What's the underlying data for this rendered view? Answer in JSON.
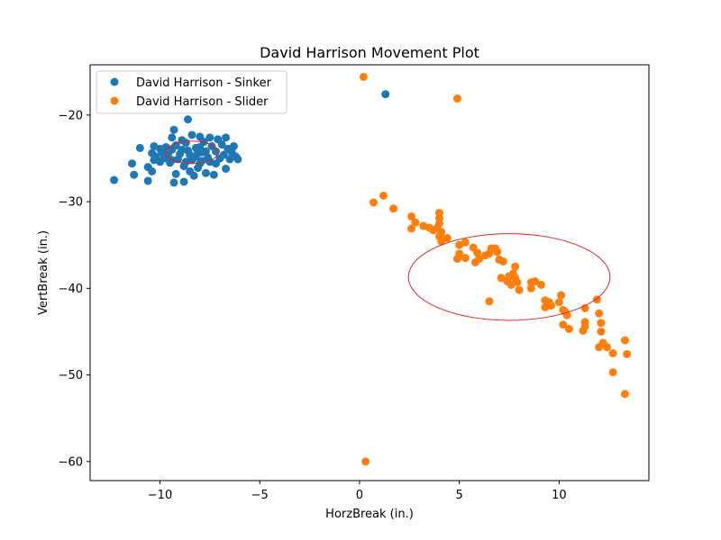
{
  "chart_data": {
    "type": "scatter",
    "title": "David Harrison Movement Plot",
    "xlabel": "HorzBreak (in.)",
    "ylabel": "VertBreak (in.)",
    "xlim": [
      -13.5,
      14.5
    ],
    "ylim": [
      -62.2,
      -14.2
    ],
    "xticks": [
      -10,
      -5,
      0,
      5,
      10
    ],
    "yticks": [
      -20,
      -30,
      -40,
      -50,
      -60
    ],
    "xtick_labels": [
      "−10",
      "−5",
      "0",
      "5",
      "10"
    ],
    "ytick_labels": [
      "−20",
      "−30",
      "−40",
      "−50",
      "−60"
    ],
    "grid": false,
    "legend_position": "upper-left",
    "series": [
      {
        "name": "David Harrison - Sinker",
        "color": "#1f77b4",
        "points": [
          [
            -12.3,
            -27.5
          ],
          [
            -11.4,
            -25.6
          ],
          [
            -11.3,
            -26.9
          ],
          [
            -11.0,
            -23.8
          ],
          [
            -10.6,
            -27.6
          ],
          [
            -10.6,
            -26.0
          ],
          [
            -10.4,
            -26.5
          ],
          [
            -10.4,
            -24.4
          ],
          [
            -10.3,
            -23.6
          ],
          [
            -10.3,
            -25.2
          ],
          [
            -10.2,
            -24.8
          ],
          [
            -10.0,
            -25.4
          ],
          [
            -10.0,
            -23.9
          ],
          [
            -9.9,
            -24.3
          ],
          [
            -9.8,
            -25.0
          ],
          [
            -9.7,
            -23.7
          ],
          [
            -9.6,
            -24.6
          ],
          [
            -9.5,
            -25.5
          ],
          [
            -9.4,
            -22.6
          ],
          [
            -9.4,
            -24.0
          ],
          [
            -9.3,
            -21.7
          ],
          [
            -9.3,
            -27.8
          ],
          [
            -9.2,
            -26.8
          ],
          [
            -9.2,
            -23.5
          ],
          [
            -9.1,
            -25.1
          ],
          [
            -9.0,
            -24.5
          ],
          [
            -8.9,
            -22.9
          ],
          [
            -8.8,
            -27.7
          ],
          [
            -8.8,
            -25.9
          ],
          [
            -8.7,
            -23.2
          ],
          [
            -8.6,
            -20.5
          ],
          [
            -8.6,
            -24.1
          ],
          [
            -8.5,
            -26.5
          ],
          [
            -8.4,
            -25.2
          ],
          [
            -8.4,
            -22.3
          ],
          [
            -8.3,
            -27.0
          ],
          [
            -8.2,
            -24.8
          ],
          [
            -8.2,
            -23.8
          ],
          [
            -8.1,
            -26.1
          ],
          [
            -8.0,
            -22.5
          ],
          [
            -8.0,
            -25.6
          ],
          [
            -7.9,
            -24.3
          ],
          [
            -7.8,
            -23.1
          ],
          [
            -7.7,
            -26.7
          ],
          [
            -7.6,
            -24.9
          ],
          [
            -7.5,
            -22.6
          ],
          [
            -7.5,
            -25.4
          ],
          [
            -7.4,
            -23.6
          ],
          [
            -7.3,
            -26.9
          ],
          [
            -7.2,
            -24.2
          ],
          [
            -7.1,
            -22.8
          ],
          [
            -7.0,
            -25.0
          ],
          [
            -6.9,
            -23.4
          ],
          [
            -6.8,
            -24.6
          ],
          [
            -6.7,
            -22.6
          ],
          [
            -6.7,
            -26.2
          ],
          [
            -6.6,
            -23.9
          ],
          [
            -6.5,
            -25.1
          ],
          [
            -6.4,
            -24.3
          ],
          [
            -6.3,
            -23.6
          ],
          [
            -6.2,
            -24.8
          ],
          [
            -6.1,
            -25.1
          ],
          [
            -8.5,
            -24.6
          ],
          [
            -8.3,
            -24.9
          ],
          [
            -8.1,
            -24.4
          ],
          [
            -7.9,
            -25.3
          ],
          [
            -8.7,
            -25.4
          ],
          [
            -8.0,
            -23.7
          ],
          [
            -7.7,
            -24.2
          ],
          [
            -8.9,
            -24.0
          ],
          [
            -9.4,
            -25.2
          ],
          [
            -7.2,
            -25.6
          ],
          [
            1.3,
            -17.6
          ]
        ]
      },
      {
        "name": "David Harrison - Slider",
        "color": "#ff7f0e",
        "points": [
          [
            0.2,
            -15.6
          ],
          [
            4.9,
            -18.1
          ],
          [
            0.3,
            -60.0
          ],
          [
            1.2,
            -29.3
          ],
          [
            0.7,
            -30.1
          ],
          [
            1.7,
            -30.8
          ],
          [
            2.6,
            -31.7
          ],
          [
            2.8,
            -32.4
          ],
          [
            2.6,
            -33.1
          ],
          [
            3.2,
            -32.8
          ],
          [
            3.5,
            -33.0
          ],
          [
            3.7,
            -33.3
          ],
          [
            4.0,
            -31.3
          ],
          [
            4.0,
            -31.9
          ],
          [
            4.0,
            -32.5
          ],
          [
            3.9,
            -33.0
          ],
          [
            4.1,
            -33.5
          ],
          [
            4.0,
            -34.0
          ],
          [
            4.2,
            -34.3
          ],
          [
            4.4,
            -34.2
          ],
          [
            4.1,
            -34.6
          ],
          [
            5.0,
            -35.0
          ],
          [
            5.3,
            -34.7
          ],
          [
            5.7,
            -35.3
          ],
          [
            5.0,
            -36.0
          ],
          [
            5.3,
            -36.5
          ],
          [
            4.9,
            -36.6
          ],
          [
            5.9,
            -35.9
          ],
          [
            6.0,
            -36.6
          ],
          [
            5.8,
            -37.0
          ],
          [
            6.3,
            -36.2
          ],
          [
            6.5,
            -36.0
          ],
          [
            6.6,
            -35.4
          ],
          [
            6.8,
            -35.4
          ],
          [
            6.9,
            -35.8
          ],
          [
            7.0,
            -36.7
          ],
          [
            7.2,
            -36.9
          ],
          [
            7.1,
            -38.8
          ],
          [
            7.4,
            -39.2
          ],
          [
            7.5,
            -38.6
          ],
          [
            7.6,
            -39.6
          ],
          [
            7.7,
            -38.3
          ],
          [
            7.8,
            -37.5
          ],
          [
            7.8,
            -38.8
          ],
          [
            8.0,
            -40.2
          ],
          [
            7.9,
            -39.3
          ],
          [
            8.6,
            -39.3
          ],
          [
            8.8,
            -39.2
          ],
          [
            8.6,
            -40.0
          ],
          [
            9.1,
            -39.6
          ],
          [
            6.5,
            -41.5
          ],
          [
            9.3,
            -41.4
          ],
          [
            9.5,
            -41.6
          ],
          [
            9.6,
            -42.0
          ],
          [
            9.3,
            -42.2
          ],
          [
            10.0,
            -41.6
          ],
          [
            10.1,
            -40.8
          ],
          [
            10.2,
            -42.5
          ],
          [
            10.4,
            -43.1
          ],
          [
            10.3,
            -42.7
          ],
          [
            10.2,
            -44.2
          ],
          [
            10.5,
            -44.7
          ],
          [
            11.3,
            -42.3
          ],
          [
            11.3,
            -43.9
          ],
          [
            11.3,
            -44.4
          ],
          [
            11.2,
            -44.9
          ],
          [
            11.9,
            -41.3
          ],
          [
            12.0,
            -42.9
          ],
          [
            12.1,
            -44.0
          ],
          [
            12.1,
            -45.0
          ],
          [
            12.2,
            -46.3
          ],
          [
            12.0,
            -46.8
          ],
          [
            12.4,
            -46.8
          ],
          [
            12.7,
            -47.5
          ],
          [
            13.3,
            -46.0
          ],
          [
            13.4,
            -47.6
          ],
          [
            12.7,
            -49.7
          ],
          [
            13.3,
            -52.2
          ]
        ]
      }
    ],
    "ellipses": [
      {
        "series": "David Harrison - Sinker",
        "color": "#d62728",
        "cx": -8.4,
        "cy": -24.3,
        "rx": 1.3,
        "ry": 1.3
      },
      {
        "series": "David Harrison - Slider",
        "color": "#d62728",
        "cx": 7.5,
        "cy": -38.7,
        "rx": 5.05,
        "ry": 5.0
      }
    ]
  }
}
